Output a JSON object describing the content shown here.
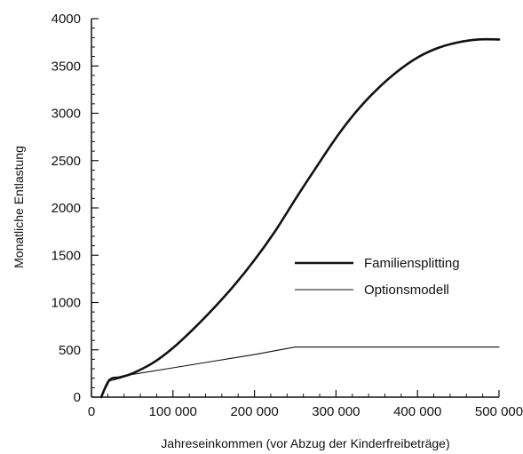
{
  "chart_data": {
    "type": "line",
    "xlabel": "Jahreseinkommen (vor Abzug der Kinderfreibeträge)",
    "ylabel": "Monatliche Entlastung",
    "xlim": [
      0,
      500000
    ],
    "ylim": [
      0,
      4000
    ],
    "x_ticks": [
      0,
      100000,
      200000,
      300000,
      400000,
      500000
    ],
    "x_tick_labels": [
      "0",
      "100 000",
      "200 000",
      "300 000",
      "400 000",
      "500 000"
    ],
    "y_ticks": [
      0,
      500,
      1000,
      1500,
      2000,
      2500,
      3000,
      3500,
      4000
    ],
    "y_tick_labels": [
      "0",
      "500",
      "1000",
      "1500",
      "2000",
      "2500",
      "3000",
      "3500",
      "4000"
    ],
    "grid": false,
    "legend_position": "center-right",
    "series": [
      {
        "name": "Familiensplitting",
        "style": "thick",
        "color": "#111111",
        "points": [
          [
            12000,
            0
          ],
          [
            22000,
            180
          ],
          [
            35000,
            210
          ],
          [
            50000,
            250
          ],
          [
            75000,
            360
          ],
          [
            100000,
            520
          ],
          [
            125000,
            720
          ],
          [
            150000,
            940
          ],
          [
            175000,
            1180
          ],
          [
            200000,
            1450
          ],
          [
            225000,
            1750
          ],
          [
            250000,
            2090
          ],
          [
            275000,
            2420
          ],
          [
            300000,
            2740
          ],
          [
            325000,
            3020
          ],
          [
            350000,
            3250
          ],
          [
            375000,
            3440
          ],
          [
            400000,
            3590
          ],
          [
            425000,
            3690
          ],
          [
            450000,
            3750
          ],
          [
            475000,
            3780
          ],
          [
            500000,
            3780
          ]
        ]
      },
      {
        "name": "Optionsmodell",
        "style": "thin",
        "color": "#111111",
        "points": [
          [
            12000,
            0
          ],
          [
            22000,
            170
          ],
          [
            35000,
            200
          ],
          [
            50000,
            240
          ],
          [
            100000,
            310
          ],
          [
            150000,
            380
          ],
          [
            200000,
            450
          ],
          [
            250000,
            530
          ],
          [
            300000,
            530
          ],
          [
            400000,
            530
          ],
          [
            500000,
            530
          ]
        ]
      }
    ]
  }
}
